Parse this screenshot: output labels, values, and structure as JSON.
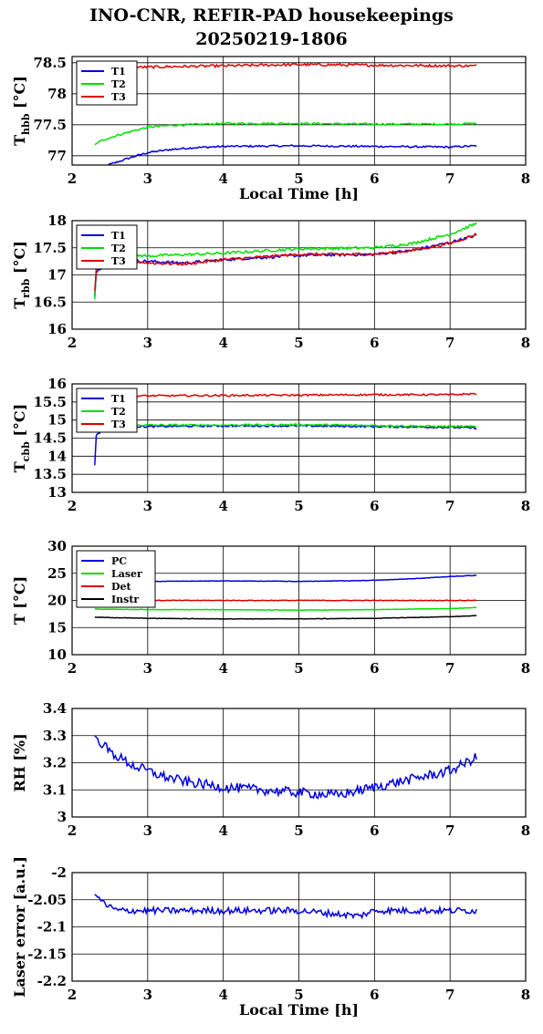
{
  "title": {
    "line1": "INO-CNR, REFIR-PAD housekeepings",
    "line2": "20250219-1806"
  },
  "colors": {
    "blue": "#0000dd",
    "green": "#00e000",
    "red": "#dd0000",
    "black": "#000000"
  },
  "chart_data": [
    {
      "type": "line",
      "ylabel_main": "T",
      "ylabel_sub": "hbb",
      "ylabel_unit": "[°C]",
      "xlabel": "Local Time [h]",
      "xlim": [
        2,
        8
      ],
      "ylim": [
        76.85,
        78.6
      ],
      "xticks": [
        "2",
        "3",
        "4",
        "5",
        "6",
        "7",
        "8"
      ],
      "yticks": [
        {
          "v": 77,
          "label": "77"
        },
        {
          "v": 77.5,
          "label": "77.5"
        },
        {
          "v": 78,
          "label": "78"
        },
        {
          "v": 78.5,
          "label": "78.5"
        }
      ],
      "grid": true,
      "legend": "top-left",
      "series": [
        {
          "name": "T1",
          "color": "#0000dd",
          "noise": 0.015,
          "points": [
            [
              2.3,
              76.72
            ],
            [
              2.4,
              76.82
            ],
            [
              2.6,
              76.9
            ],
            [
              2.8,
              76.98
            ],
            [
              3.0,
              77.05
            ],
            [
              3.3,
              77.1
            ],
            [
              3.6,
              77.13
            ],
            [
              4.0,
              77.15
            ],
            [
              5.0,
              77.16
            ],
            [
              6.0,
              77.15
            ],
            [
              7.0,
              77.14
            ],
            [
              7.35,
              77.16
            ]
          ]
        },
        {
          "name": "T2",
          "color": "#00e000",
          "noise": 0.015,
          "points": [
            [
              2.3,
              77.18
            ],
            [
              2.4,
              77.25
            ],
            [
              2.6,
              77.33
            ],
            [
              2.8,
              77.4
            ],
            [
              3.0,
              77.46
            ],
            [
              3.3,
              77.49
            ],
            [
              4.0,
              77.52
            ],
            [
              5.0,
              77.52
            ],
            [
              6.0,
              77.51
            ],
            [
              7.0,
              77.51
            ],
            [
              7.35,
              77.52
            ]
          ]
        },
        {
          "name": "T3",
          "color": "#dd0000",
          "noise": 0.02,
          "points": [
            [
              2.3,
              78.4
            ],
            [
              2.5,
              78.42
            ],
            [
              3.0,
              78.43
            ],
            [
              4.0,
              78.45
            ],
            [
              5.0,
              78.47
            ],
            [
              6.0,
              78.46
            ],
            [
              7.0,
              78.45
            ],
            [
              7.35,
              78.45
            ]
          ]
        }
      ]
    },
    {
      "type": "line",
      "ylabel_main": "T",
      "ylabel_sub": "rbb",
      "ylabel_unit": "[°C]",
      "xlabel": "",
      "xlim": [
        2,
        8
      ],
      "ylim": [
        16,
        18
      ],
      "xticks": [
        "2",
        "3",
        "4",
        "5",
        "6",
        "7",
        "8"
      ],
      "yticks": [
        {
          "v": 16,
          "label": "16"
        },
        {
          "v": 16.5,
          "label": "16.5"
        },
        {
          "v": 17,
          "label": "17"
        },
        {
          "v": 17.5,
          "label": "17.5"
        },
        {
          "v": 18,
          "label": "18"
        }
      ],
      "grid": true,
      "legend": "top-left",
      "series": [
        {
          "name": "T1",
          "color": "#0000dd",
          "noise": 0.025,
          "points": [
            [
              2.3,
              16.6
            ],
            [
              2.32,
              17.05
            ],
            [
              2.5,
              17.28
            ],
            [
              3.0,
              17.25
            ],
            [
              3.5,
              17.22
            ],
            [
              4.0,
              17.28
            ],
            [
              5.0,
              17.36
            ],
            [
              6.0,
              17.38
            ],
            [
              6.5,
              17.45
            ],
            [
              7.0,
              17.6
            ],
            [
              7.35,
              17.73
            ]
          ]
        },
        {
          "name": "T2",
          "color": "#00e000",
          "noise": 0.025,
          "points": [
            [
              2.3,
              16.55
            ],
            [
              2.32,
              17.2
            ],
            [
              2.5,
              17.38
            ],
            [
              3.0,
              17.35
            ],
            [
              4.0,
              17.4
            ],
            [
              5.0,
              17.48
            ],
            [
              6.0,
              17.5
            ],
            [
              6.5,
              17.58
            ],
            [
              7.0,
              17.75
            ],
            [
              7.35,
              17.95
            ]
          ]
        },
        {
          "name": "T3",
          "color": "#dd0000",
          "noise": 0.025,
          "points": [
            [
              2.3,
              16.7
            ],
            [
              2.32,
              17.1
            ],
            [
              2.5,
              17.3
            ],
            [
              3.0,
              17.22
            ],
            [
              3.5,
              17.2
            ],
            [
              4.0,
              17.28
            ],
            [
              5.0,
              17.38
            ],
            [
              6.0,
              17.38
            ],
            [
              6.5,
              17.45
            ],
            [
              7.0,
              17.58
            ],
            [
              7.35,
              17.75
            ]
          ]
        }
      ]
    },
    {
      "type": "line",
      "ylabel_main": "T",
      "ylabel_sub": "cbb",
      "ylabel_unit": "[°C]",
      "xlabel": "",
      "xlim": [
        2,
        8
      ],
      "ylim": [
        13,
        16
      ],
      "xticks": [
        "2",
        "3",
        "4",
        "5",
        "6",
        "7",
        "8"
      ],
      "yticks": [
        {
          "v": 13,
          "label": "13"
        },
        {
          "v": 13.5,
          "label": "13.5"
        },
        {
          "v": 14,
          "label": "14"
        },
        {
          "v": 14.5,
          "label": "14.5"
        },
        {
          "v": 15,
          "label": "15"
        },
        {
          "v": 15.5,
          "label": "15.5"
        },
        {
          "v": 16,
          "label": "16"
        }
      ],
      "grid": true,
      "legend": "top-left",
      "series": [
        {
          "name": "T1",
          "color": "#0000dd",
          "noise": 0.025,
          "points": [
            [
              2.3,
              13.75
            ],
            [
              2.32,
              14.6
            ],
            [
              2.5,
              14.82
            ],
            [
              3.0,
              14.82
            ],
            [
              4.0,
              14.84
            ],
            [
              5.0,
              14.84
            ],
            [
              6.0,
              14.82
            ],
            [
              7.0,
              14.8
            ],
            [
              7.35,
              14.78
            ]
          ]
        },
        {
          "name": "T2",
          "color": "#00e000",
          "noise": 0.025,
          "points": [
            [
              2.3,
              14.7
            ],
            [
              2.5,
              14.87
            ],
            [
              3.0,
              14.86
            ],
            [
              4.0,
              14.86
            ],
            [
              5.0,
              14.87
            ],
            [
              6.0,
              14.85
            ],
            [
              7.0,
              14.82
            ],
            [
              7.35,
              14.82
            ]
          ]
        },
        {
          "name": "T3",
          "color": "#dd0000",
          "noise": 0.025,
          "points": [
            [
              2.3,
              15.6
            ],
            [
              2.5,
              15.66
            ],
            [
              3.0,
              15.67
            ],
            [
              4.0,
              15.68
            ],
            [
              5.0,
              15.69
            ],
            [
              6.0,
              15.7
            ],
            [
              7.0,
              15.7
            ],
            [
              7.35,
              15.73
            ]
          ]
        }
      ]
    },
    {
      "type": "line",
      "ylabel_main": "T [°C]",
      "ylabel_sub": "",
      "ylabel_unit": "",
      "xlabel": "",
      "xlim": [
        2,
        8
      ],
      "ylim": [
        10,
        30
      ],
      "xticks": [
        "2",
        "3",
        "4",
        "5",
        "6",
        "7",
        "8"
      ],
      "yticks": [
        {
          "v": 10,
          "label": "10"
        },
        {
          "v": 15,
          "label": "15"
        },
        {
          "v": 20,
          "label": "20"
        },
        {
          "v": 25,
          "label": "25"
        },
        {
          "v": 30,
          "label": "30"
        }
      ],
      "grid": true,
      "legend": "top-left",
      "series": [
        {
          "name": "PC",
          "color": "#0000dd",
          "noise": 0.04,
          "points": [
            [
              2.3,
              23.6
            ],
            [
              3.0,
              23.5
            ],
            [
              4.0,
              23.6
            ],
            [
              5.0,
              23.5
            ],
            [
              6.0,
              23.7
            ],
            [
              6.5,
              24.0
            ],
            [
              7.0,
              24.4
            ],
            [
              7.35,
              24.6
            ]
          ]
        },
        {
          "name": "Laser",
          "color": "#00e000",
          "noise": 0.04,
          "points": [
            [
              2.3,
              18.4
            ],
            [
              3.0,
              18.3
            ],
            [
              4.0,
              18.3
            ],
            [
              5.0,
              18.2
            ],
            [
              6.0,
              18.3
            ],
            [
              7.0,
              18.5
            ],
            [
              7.35,
              18.7
            ]
          ]
        },
        {
          "name": "Det",
          "color": "#dd0000",
          "noise": 0.06,
          "points": [
            [
              2.3,
              20.0
            ],
            [
              7.35,
              20.0
            ]
          ]
        },
        {
          "name": "Instr",
          "color": "#000000",
          "noise": 0.04,
          "points": [
            [
              2.3,
              16.9
            ],
            [
              3.0,
              16.7
            ],
            [
              4.0,
              16.6
            ],
            [
              5.0,
              16.6
            ],
            [
              6.0,
              16.7
            ],
            [
              7.0,
              17.0
            ],
            [
              7.35,
              17.2
            ]
          ]
        }
      ]
    },
    {
      "type": "line",
      "ylabel_main": "RH [%]",
      "ylabel_sub": "",
      "ylabel_unit": "",
      "xlabel": "",
      "xlim": [
        2,
        8
      ],
      "ylim": [
        3,
        3.4
      ],
      "xticks": [
        "2",
        "3",
        "4",
        "5",
        "6",
        "7",
        "8"
      ],
      "yticks": [
        {
          "v": 3,
          "label": "3"
        },
        {
          "v": 3.1,
          "label": "3.1"
        },
        {
          "v": 3.2,
          "label": "3.2"
        },
        {
          "v": 3.3,
          "label": "3.3"
        },
        {
          "v": 3.4,
          "label": "3.4"
        }
      ],
      "grid": true,
      "legend": "none",
      "series": [
        {
          "name": "",
          "color": "#0000dd",
          "noise": 0.018,
          "points": [
            [
              2.3,
              3.3
            ],
            [
              2.5,
              3.24
            ],
            [
              2.8,
              3.19
            ],
            [
              3.2,
              3.15
            ],
            [
              3.5,
              3.13
            ],
            [
              4.0,
              3.11
            ],
            [
              4.5,
              3.1
            ],
            [
              5.0,
              3.09
            ],
            [
              5.5,
              3.08
            ],
            [
              6.0,
              3.11
            ],
            [
              6.5,
              3.14
            ],
            [
              7.0,
              3.17
            ],
            [
              7.35,
              3.22
            ]
          ]
        }
      ]
    },
    {
      "type": "line",
      "ylabel_main": "Laser error [a.u.]",
      "ylabel_sub": "",
      "ylabel_unit": "",
      "xlabel": "Local Time [h]",
      "xlim": [
        2,
        8
      ],
      "ylim": [
        -2.2,
        -2
      ],
      "xticks": [
        "2",
        "3",
        "4",
        "5",
        "6",
        "7",
        "8"
      ],
      "yticks": [
        {
          "v": -2.2,
          "label": "-2.2"
        },
        {
          "v": -2.15,
          "label": "-2.15"
        },
        {
          "v": -2.1,
          "label": "-2.1"
        },
        {
          "v": -2.05,
          "label": "-2.05"
        },
        {
          "v": -2,
          "label": "-2"
        }
      ],
      "grid": true,
      "legend": "none",
      "series": [
        {
          "name": "",
          "color": "#0000dd",
          "noise": 0.006,
          "points": [
            [
              2.3,
              -2.04
            ],
            [
              2.45,
              -2.06
            ],
            [
              2.6,
              -2.07
            ],
            [
              3.0,
              -2.07
            ],
            [
              4.0,
              -2.07
            ],
            [
              5.0,
              -2.07
            ],
            [
              5.8,
              -2.08
            ],
            [
              6.0,
              -2.07
            ],
            [
              7.0,
              -2.07
            ],
            [
              7.35,
              -2.07
            ]
          ]
        }
      ]
    }
  ]
}
